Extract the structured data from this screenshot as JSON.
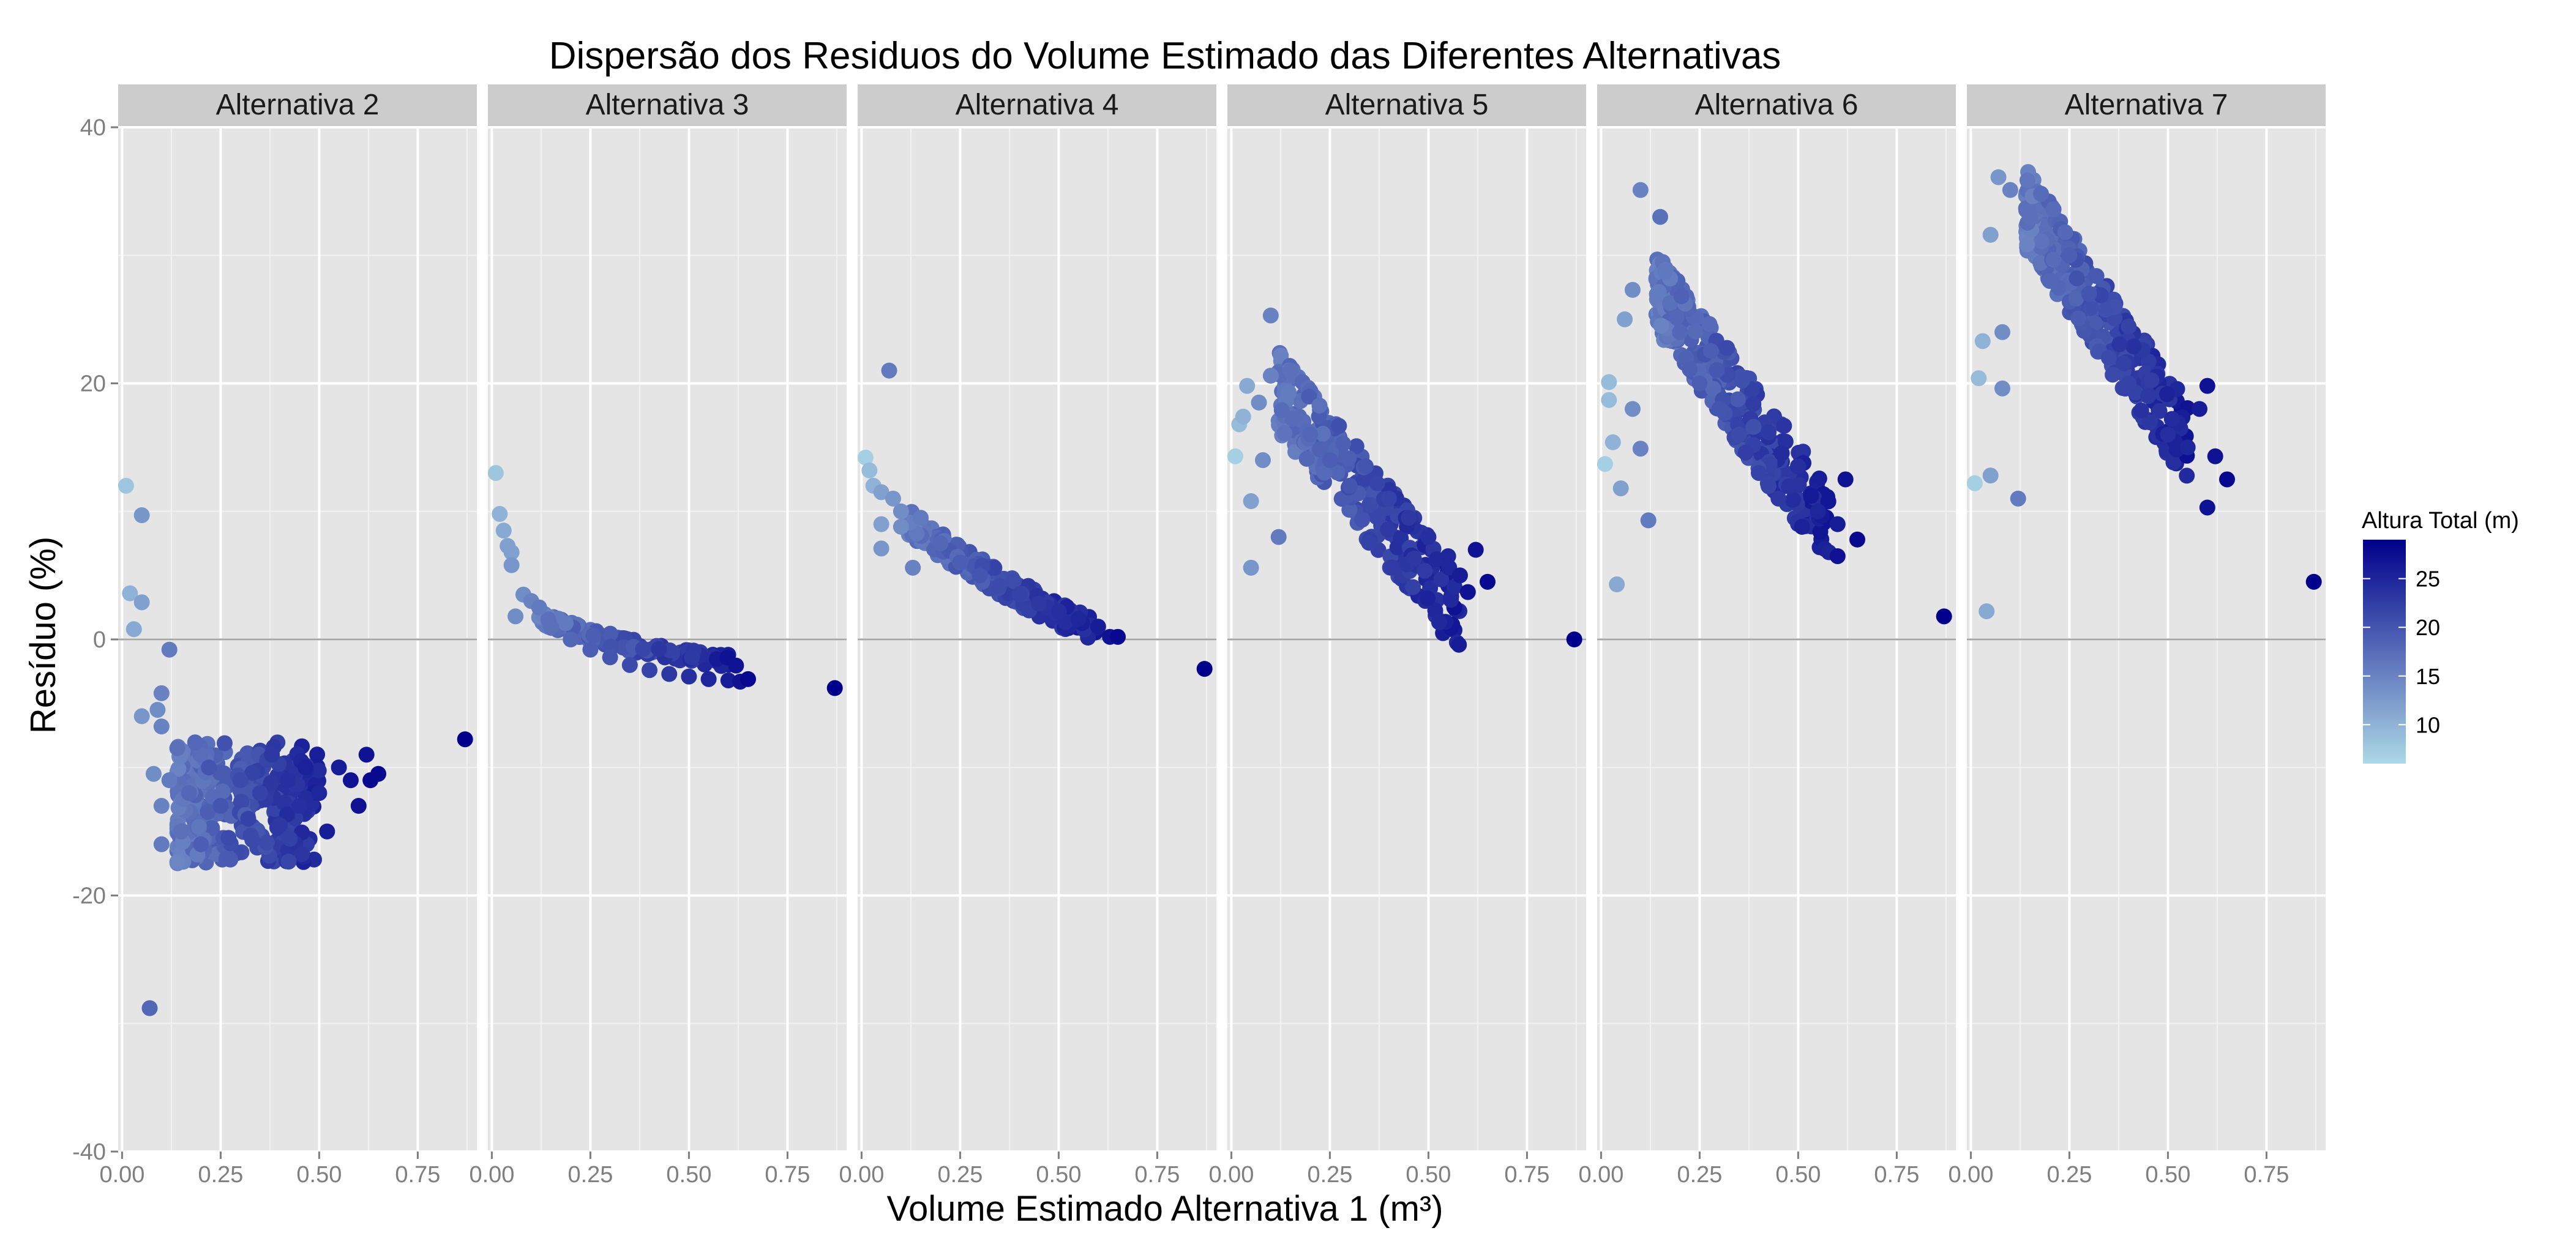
{
  "chart_data": {
    "type": "scatter",
    "title": "Dispersão dos Residuos do Volume Estimado das Diferentes Alternativas",
    "xlabel": "Volume Estimado Alternativa 1 (m³)",
    "ylabel": "Resíduo (%)",
    "xlim": [
      -0.01,
      0.9
    ],
    "ylim": [
      -40,
      40
    ],
    "x_ticks": [
      "0.00",
      "0.25",
      "0.50",
      "0.75"
    ],
    "x_tick_values": [
      0,
      0.25,
      0.5,
      0.75
    ],
    "y_ticks": [
      "-40",
      "-20",
      "0",
      "20",
      "40"
    ],
    "y_tick_values": [
      -40,
      -20,
      0,
      20,
      40
    ],
    "grid": true,
    "reference_line_y": 0,
    "legend": {
      "title": "Altura Total (m)",
      "position": "right",
      "labels": [
        "25",
        "20",
        "15",
        "10"
      ],
      "label_values": [
        25,
        20,
        15,
        10
      ],
      "range": [
        6,
        29
      ],
      "color_low": "#add8e6",
      "color_high": "#00008b"
    },
    "colors": {
      "panel_bg": "#e5e5e5",
      "grid_major": "#ffffff",
      "strip_bg": "#cccccc",
      "zero_line": "#a6a6a6"
    },
    "facets": [
      {
        "label": "Alternativa 2",
        "points": [
          [
            0.01,
            12,
            8
          ],
          [
            0.02,
            3.6,
            10
          ],
          [
            0.03,
            0.8,
            11
          ],
          [
            0.05,
            9.7,
            13
          ],
          [
            0.05,
            2.9,
            12
          ],
          [
            0.05,
            -6,
            13
          ],
          [
            0.07,
            -28.8,
            18
          ],
          [
            0.08,
            -10.5,
            14
          ],
          [
            0.09,
            -5.5,
            14
          ],
          [
            0.1,
            -4.2,
            15
          ],
          [
            0.1,
            -6.8,
            15
          ],
          [
            0.12,
            -0.8,
            16
          ],
          [
            0.1,
            -13,
            15
          ],
          [
            0.1,
            -16,
            16
          ],
          [
            0.12,
            -11,
            16
          ],
          [
            0.14,
            -8.5,
            17
          ],
          [
            0.15,
            -15,
            17
          ],
          [
            0.17,
            -12,
            18
          ],
          [
            0.2,
            -16,
            19
          ],
          [
            0.22,
            -10,
            20
          ],
          [
            0.25,
            -13,
            20
          ],
          [
            0.27,
            -15.5,
            21
          ],
          [
            0.3,
            -11,
            21
          ],
          [
            0.32,
            -14,
            22
          ],
          [
            0.35,
            -12,
            22
          ],
          [
            0.38,
            -9,
            23
          ],
          [
            0.4,
            -14.5,
            23
          ],
          [
            0.42,
            -11,
            24
          ],
          [
            0.45,
            -13,
            24
          ],
          [
            0.5,
            -12,
            25
          ],
          [
            0.52,
            -15,
            26
          ],
          [
            0.55,
            -10,
            26
          ],
          [
            0.58,
            -11,
            27
          ],
          [
            0.6,
            -13,
            27
          ],
          [
            0.62,
            -9,
            27
          ],
          [
            0.63,
            -11,
            28
          ],
          [
            0.65,
            -10.5,
            28
          ],
          [
            0.87,
            -7.8,
            29
          ]
        ],
        "clusters": [
          {
            "x": [
              0.14,
              0.5
            ],
            "y": [
              -17.5,
              -8
            ],
            "h": [
              16,
              25
            ],
            "n": 300
          }
        ]
      },
      {
        "label": "Alternativa 3",
        "points": [
          [
            0.01,
            13,
            8
          ],
          [
            0.02,
            9.8,
            10
          ],
          [
            0.03,
            8.5,
            11
          ],
          [
            0.04,
            7.3,
            12
          ],
          [
            0.05,
            6.8,
            12
          ],
          [
            0.05,
            5.8,
            13
          ],
          [
            0.06,
            1.8,
            14
          ],
          [
            0.08,
            3.5,
            14
          ],
          [
            0.1,
            3,
            15
          ],
          [
            0.12,
            2.5,
            16
          ],
          [
            0.15,
            1,
            17
          ],
          [
            0.2,
            0,
            18
          ],
          [
            0.25,
            -0.8,
            19
          ],
          [
            0.3,
            -1.4,
            20
          ],
          [
            0.35,
            -2,
            21
          ],
          [
            0.4,
            -2.4,
            22
          ],
          [
            0.45,
            -2.7,
            23
          ],
          [
            0.5,
            -2.9,
            24
          ],
          [
            0.55,
            -3.1,
            25
          ],
          [
            0.6,
            -3.2,
            26
          ],
          [
            0.63,
            -3.3,
            27
          ],
          [
            0.65,
            -3.1,
            28
          ],
          [
            0.87,
            -3.8,
            29
          ]
        ],
        "clusters": [
          {
            "curve": "a3",
            "x": [
              0.12,
              0.62
            ],
            "h": [
              16,
              26
            ],
            "n": 160
          }
        ]
      },
      {
        "label": "Alternativa 4",
        "points": [
          [
            0.01,
            14.2,
            7
          ],
          [
            0.02,
            13.2,
            9
          ],
          [
            0.03,
            12,
            10
          ],
          [
            0.05,
            11.5,
            12
          ],
          [
            0.05,
            9,
            12
          ],
          [
            0.07,
            21,
            16
          ],
          [
            0.05,
            7.1,
            13
          ],
          [
            0.08,
            11,
            13
          ],
          [
            0.1,
            10,
            14
          ],
          [
            0.1,
            8.8,
            14
          ],
          [
            0.13,
            5.6,
            15
          ],
          [
            0.15,
            9.5,
            16
          ],
          [
            0.2,
            7.5,
            18
          ],
          [
            0.25,
            6,
            19
          ],
          [
            0.3,
            5,
            20
          ],
          [
            0.35,
            4.2,
            21
          ],
          [
            0.4,
            3.5,
            22
          ],
          [
            0.45,
            2.8,
            23
          ],
          [
            0.5,
            2.2,
            24
          ],
          [
            0.55,
            1.6,
            25
          ],
          [
            0.6,
            1,
            26
          ],
          [
            0.63,
            0.2,
            27
          ],
          [
            0.65,
            0.2,
            28
          ],
          [
            0.87,
            -2.3,
            29
          ]
        ],
        "clusters": [
          {
            "curve": "a4",
            "x": [
              0.12,
              0.6
            ],
            "h": [
              16,
              26
            ],
            "n": 170
          }
        ]
      },
      {
        "label": "Alternativa 5",
        "points": [
          [
            0.01,
            14.3,
            7
          ],
          [
            0.02,
            16.8,
            9
          ],
          [
            0.03,
            17.4,
            10
          ],
          [
            0.04,
            19.8,
            11
          ],
          [
            0.05,
            10.8,
            12
          ],
          [
            0.05,
            5.6,
            13
          ],
          [
            0.07,
            18.5,
            14
          ],
          [
            0.08,
            14,
            14
          ],
          [
            0.1,
            25.3,
            15
          ],
          [
            0.1,
            20.6,
            15
          ],
          [
            0.12,
            8,
            16
          ],
          [
            0.15,
            21,
            17
          ],
          [
            0.2,
            16,
            18
          ],
          [
            0.25,
            14,
            19
          ],
          [
            0.3,
            12,
            20
          ],
          [
            0.35,
            10.5,
            21
          ],
          [
            0.4,
            11,
            22
          ],
          [
            0.45,
            9.5,
            23
          ],
          [
            0.5,
            8,
            24
          ],
          [
            0.55,
            6.5,
            25
          ],
          [
            0.58,
            5,
            26
          ],
          [
            0.6,
            3.7,
            27
          ],
          [
            0.62,
            7,
            27
          ],
          [
            0.65,
            4.5,
            28
          ],
          [
            0.87,
            0,
            29
          ]
        ],
        "clusters": [
          {
            "curve": "a5",
            "x": [
              0.12,
              0.58
            ],
            "h": [
              16,
              26
            ],
            "n": 260
          }
        ]
      },
      {
        "label": "Alternativa 6",
        "points": [
          [
            0.01,
            13.7,
            7
          ],
          [
            0.02,
            18.7,
            9
          ],
          [
            0.02,
            20.1,
            9
          ],
          [
            0.03,
            15.4,
            10
          ],
          [
            0.04,
            4.3,
            11
          ],
          [
            0.05,
            11.8,
            12
          ],
          [
            0.06,
            25,
            12
          ],
          [
            0.08,
            27.3,
            14
          ],
          [
            0.08,
            18,
            14
          ],
          [
            0.1,
            35.1,
            15
          ],
          [
            0.1,
            14.9,
            15
          ],
          [
            0.12,
            9.3,
            16
          ],
          [
            0.15,
            33,
            17
          ],
          [
            0.2,
            24,
            18
          ],
          [
            0.25,
            20,
            19
          ],
          [
            0.3,
            18,
            20
          ],
          [
            0.35,
            16,
            21
          ],
          [
            0.4,
            13,
            22
          ],
          [
            0.45,
            11,
            23
          ],
          [
            0.5,
            13.5,
            24
          ],
          [
            0.55,
            10,
            25
          ],
          [
            0.6,
            9,
            26
          ],
          [
            0.6,
            6.5,
            27
          ],
          [
            0.62,
            12.5,
            27
          ],
          [
            0.65,
            7.8,
            28
          ],
          [
            0.87,
            1.8,
            29
          ]
        ],
        "clusters": [
          {
            "curve": "a6",
            "x": [
              0.14,
              0.58
            ],
            "h": [
              16,
              26
            ],
            "n": 300
          }
        ]
      },
      {
        "label": "Alternativa 7",
        "points": [
          [
            0.01,
            12.2,
            7
          ],
          [
            0.02,
            20.4,
            9
          ],
          [
            0.03,
            23.3,
            10
          ],
          [
            0.04,
            2.2,
            11
          ],
          [
            0.05,
            31.6,
            12
          ],
          [
            0.05,
            12.8,
            12
          ],
          [
            0.07,
            36.1,
            13
          ],
          [
            0.08,
            24,
            14
          ],
          [
            0.08,
            19.6,
            14
          ],
          [
            0.1,
            35.1,
            15
          ],
          [
            0.12,
            11,
            16
          ],
          [
            0.15,
            33,
            17
          ],
          [
            0.2,
            28,
            18
          ],
          [
            0.25,
            30,
            19
          ],
          [
            0.3,
            27,
            20
          ],
          [
            0.35,
            22,
            21
          ],
          [
            0.4,
            20,
            22
          ],
          [
            0.45,
            19,
            23
          ],
          [
            0.5,
            16,
            24
          ],
          [
            0.55,
            15,
            25
          ],
          [
            0.58,
            18,
            26
          ],
          [
            0.6,
            10.3,
            27
          ],
          [
            0.6,
            19.8,
            27
          ],
          [
            0.62,
            14.3,
            27
          ],
          [
            0.65,
            12.5,
            28
          ],
          [
            0.87,
            4.5,
            29
          ]
        ],
        "clusters": [
          {
            "curve": "a7",
            "x": [
              0.14,
              0.55
            ],
            "h": [
              16,
              26
            ],
            "n": 320
          }
        ]
      }
    ]
  }
}
